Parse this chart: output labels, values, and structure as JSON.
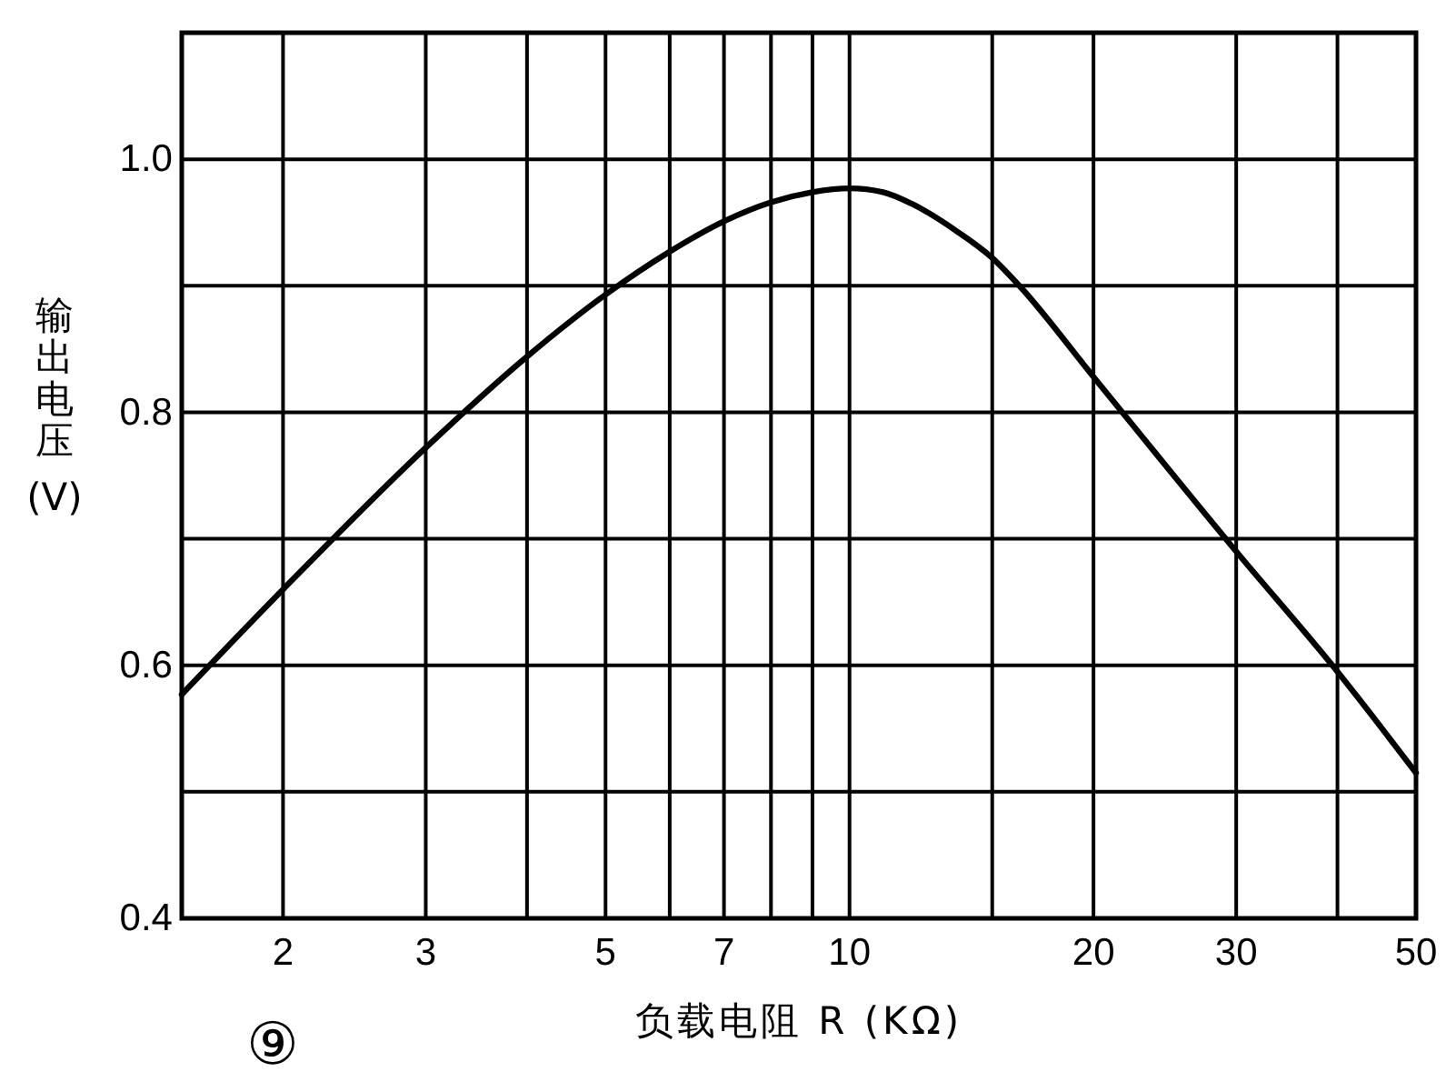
{
  "chart_data": {
    "type": "line",
    "xlabel": "负载电阻 R (KΩ)",
    "ylabel": "输出电压(V)",
    "annotations": [
      "⑨"
    ],
    "x": [
      1.5,
      2,
      3,
      4,
      5,
      6,
      7,
      8,
      9,
      10,
      11,
      12,
      13.5,
      15,
      16.2,
      20,
      30,
      40,
      50
    ],
    "series": [
      {
        "color": "#000000",
        "values": [
          0.577,
          0.66,
          0.772,
          0.844,
          0.893,
          0.927,
          0.951,
          0.966,
          0.974,
          0.977,
          0.974,
          0.964,
          0.944,
          0.922,
          0.9,
          0.828,
          0.69,
          0.595,
          0.515
        ]
      }
    ],
    "xlim": [
      1.5,
      50
    ],
    "ylim": [
      0.4,
      1.1
    ],
    "xticks": [
      2,
      3,
      {
        "value": 4,
        "label": null
      },
      5,
      {
        "value": 6,
        "label": null
      },
      7,
      {
        "value": 8,
        "label": null
      },
      {
        "value": 9,
        "label": null
      },
      10,
      {
        "value": 15,
        "label": null
      },
      20,
      30,
      {
        "value": 40,
        "label": null
      },
      50
    ],
    "yticks": [
      0.4,
      {
        "value": 0.5,
        "label": null
      },
      0.6,
      {
        "value": 0.7,
        "label": null
      },
      0.8,
      {
        "value": 0.9,
        "label": null
      },
      {
        "value": 1,
        "label": "1.0"
      }
    ],
    "log": "x",
    "grid": true
  }
}
